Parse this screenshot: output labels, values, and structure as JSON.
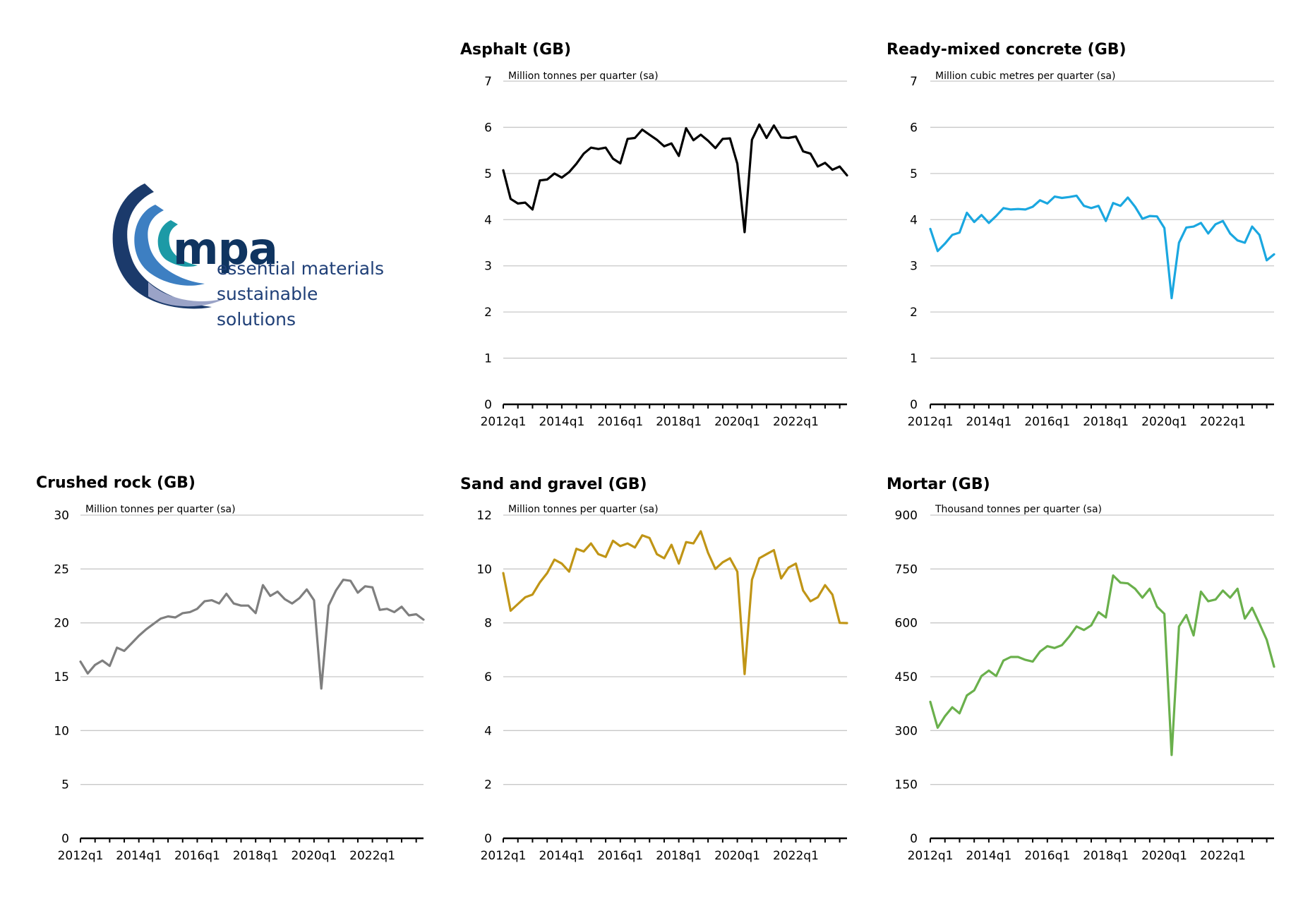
{
  "logo": {
    "word": "mpa",
    "tagline_1": "essential materials",
    "tagline_2": "sustainable solutions",
    "colors": {
      "dark": "#1b3a6b",
      "mid": "#3d7fc2",
      "teal": "#1c9aa6",
      "light": "#9aa3c7"
    }
  },
  "chart_data": [
    {
      "type": "line",
      "title": "Asphalt (GB)",
      "unit_label": "Million tonnes per quarter (sa)",
      "ylim": [
        0,
        7
      ],
      "yticks": [
        "0",
        "1",
        "2",
        "3",
        "4",
        "5",
        "6",
        "7"
      ],
      "x_tick_labels": [
        "2012q1",
        "2014q1",
        "2016q1",
        "2018q1",
        "2020q1",
        "2022q1"
      ],
      "x_start": "2012q1",
      "color": "#000000",
      "grid": true,
      "legend": "none",
      "values": [
        5.07,
        4.45,
        4.35,
        4.37,
        4.22,
        4.85,
        4.87,
        5.0,
        4.91,
        5.03,
        5.21,
        5.43,
        5.56,
        5.53,
        5.56,
        5.32,
        5.22,
        5.75,
        5.77,
        5.95,
        5.84,
        5.73,
        5.59,
        5.65,
        5.38,
        5.98,
        5.72,
        5.84,
        5.71,
        5.55,
        5.75,
        5.76,
        5.21,
        3.73,
        5.73,
        6.06,
        5.77,
        6.04,
        5.78,
        5.77,
        5.8,
        5.48,
        5.43,
        5.15,
        5.23,
        5.08,
        5.15,
        4.96
      ]
    },
    {
      "type": "line",
      "title": "Ready-mixed concrete (GB)",
      "unit_label": "Million cubic metres per quarter (sa)",
      "ylim": [
        0,
        7
      ],
      "yticks": [
        "0",
        "1",
        "2",
        "3",
        "4",
        "5",
        "6",
        "7"
      ],
      "x_tick_labels": [
        "2012q1",
        "2014q1",
        "2016q1",
        "2018q1",
        "2020q1",
        "2022q1"
      ],
      "x_start": "2012q1",
      "color": "#1aa7e0",
      "grid": true,
      "legend": "none",
      "values": [
        3.8,
        3.32,
        3.48,
        3.67,
        3.72,
        4.15,
        3.95,
        4.1,
        3.93,
        4.08,
        4.25,
        4.22,
        4.23,
        4.22,
        4.28,
        4.42,
        4.35,
        4.5,
        4.47,
        4.49,
        4.52,
        4.3,
        4.25,
        4.3,
        3.97,
        4.36,
        4.3,
        4.48,
        4.28,
        4.02,
        4.08,
        4.07,
        3.82,
        2.3,
        3.5,
        3.83,
        3.85,
        3.93,
        3.7,
        3.9,
        3.97,
        3.7,
        3.55,
        3.5,
        3.85,
        3.67,
        3.12,
        3.25
      ]
    },
    {
      "type": "line",
      "title": "Crushed rock (GB)",
      "unit_label": "Million tonnes per quarter (sa)",
      "ylim": [
        0,
        30
      ],
      "yticks": [
        "0",
        "5",
        "10",
        "15",
        "20",
        "25",
        "30"
      ],
      "x_tick_labels": [
        "2012q1",
        "2014q1",
        "2016q1",
        "2018q1",
        "2020q1",
        "2022q1"
      ],
      "x_start": "2012q1",
      "color": "#7f7f7f",
      "grid": true,
      "legend": "none",
      "values": [
        16.4,
        15.3,
        16.1,
        16.5,
        16.0,
        17.7,
        17.4,
        18.1,
        18.8,
        19.4,
        19.9,
        20.4,
        20.6,
        20.5,
        20.9,
        21.0,
        21.3,
        22.0,
        22.1,
        21.8,
        22.7,
        21.8,
        21.6,
        21.6,
        20.9,
        23.5,
        22.5,
        22.9,
        22.2,
        21.8,
        22.3,
        23.1,
        22.1,
        13.9,
        21.6,
        23.0,
        24.0,
        23.9,
        22.8,
        23.4,
        23.3,
        21.2,
        21.3,
        21.0,
        21.5,
        20.7,
        20.8,
        20.3
      ]
    },
    {
      "type": "line",
      "title": "Sand and gravel (GB)",
      "unit_label": "Million tonnes per quarter (sa)",
      "ylim": [
        0,
        12
      ],
      "yticks": [
        "0",
        "2",
        "4",
        "6",
        "8",
        "10",
        "12"
      ],
      "x_tick_labels": [
        "2012q1",
        "2014q1",
        "2016q1",
        "2018q1",
        "2020q1",
        "2022q1"
      ],
      "x_start": "2012q1",
      "color": "#c09516",
      "grid": true,
      "legend": "none",
      "values": [
        9.85,
        8.45,
        8.7,
        8.95,
        9.05,
        9.5,
        9.85,
        10.35,
        10.2,
        9.9,
        10.75,
        10.65,
        10.95,
        10.55,
        10.45,
        11.05,
        10.85,
        10.95,
        10.8,
        11.25,
        11.15,
        10.55,
        10.4,
        10.9,
        10.2,
        11.0,
        10.95,
        11.4,
        10.6,
        10.0,
        10.25,
        10.4,
        9.9,
        6.1,
        9.6,
        10.4,
        10.55,
        10.7,
        9.65,
        10.05,
        10.2,
        9.2,
        8.8,
        8.95,
        9.4,
        9.05,
        8.0,
        7.99
      ]
    },
    {
      "type": "line",
      "title": "Mortar (GB)",
      "unit_label": "Thousand tonnes per quarter (sa)",
      "ylim": [
        0,
        900
      ],
      "yticks": [
        "0",
        "150",
        "300",
        "450",
        "600",
        "750",
        "900"
      ],
      "x_tick_labels": [
        "2012q1",
        "2014q1",
        "2016q1",
        "2018q1",
        "2020q1",
        "2022q1"
      ],
      "x_start": "2012q1",
      "color": "#6ab04c",
      "grid": true,
      "legend": "none",
      "values": [
        380,
        308,
        340,
        365,
        348,
        398,
        412,
        452,
        467,
        452,
        495,
        505,
        505,
        497,
        492,
        520,
        535,
        530,
        538,
        562,
        590,
        580,
        593,
        630,
        615,
        732,
        712,
        710,
        695,
        670,
        695,
        645,
        625,
        232,
        590,
        622,
        565,
        687,
        660,
        665,
        690,
        670,
        695,
        612,
        642,
        598,
        553,
        478
      ]
    }
  ]
}
